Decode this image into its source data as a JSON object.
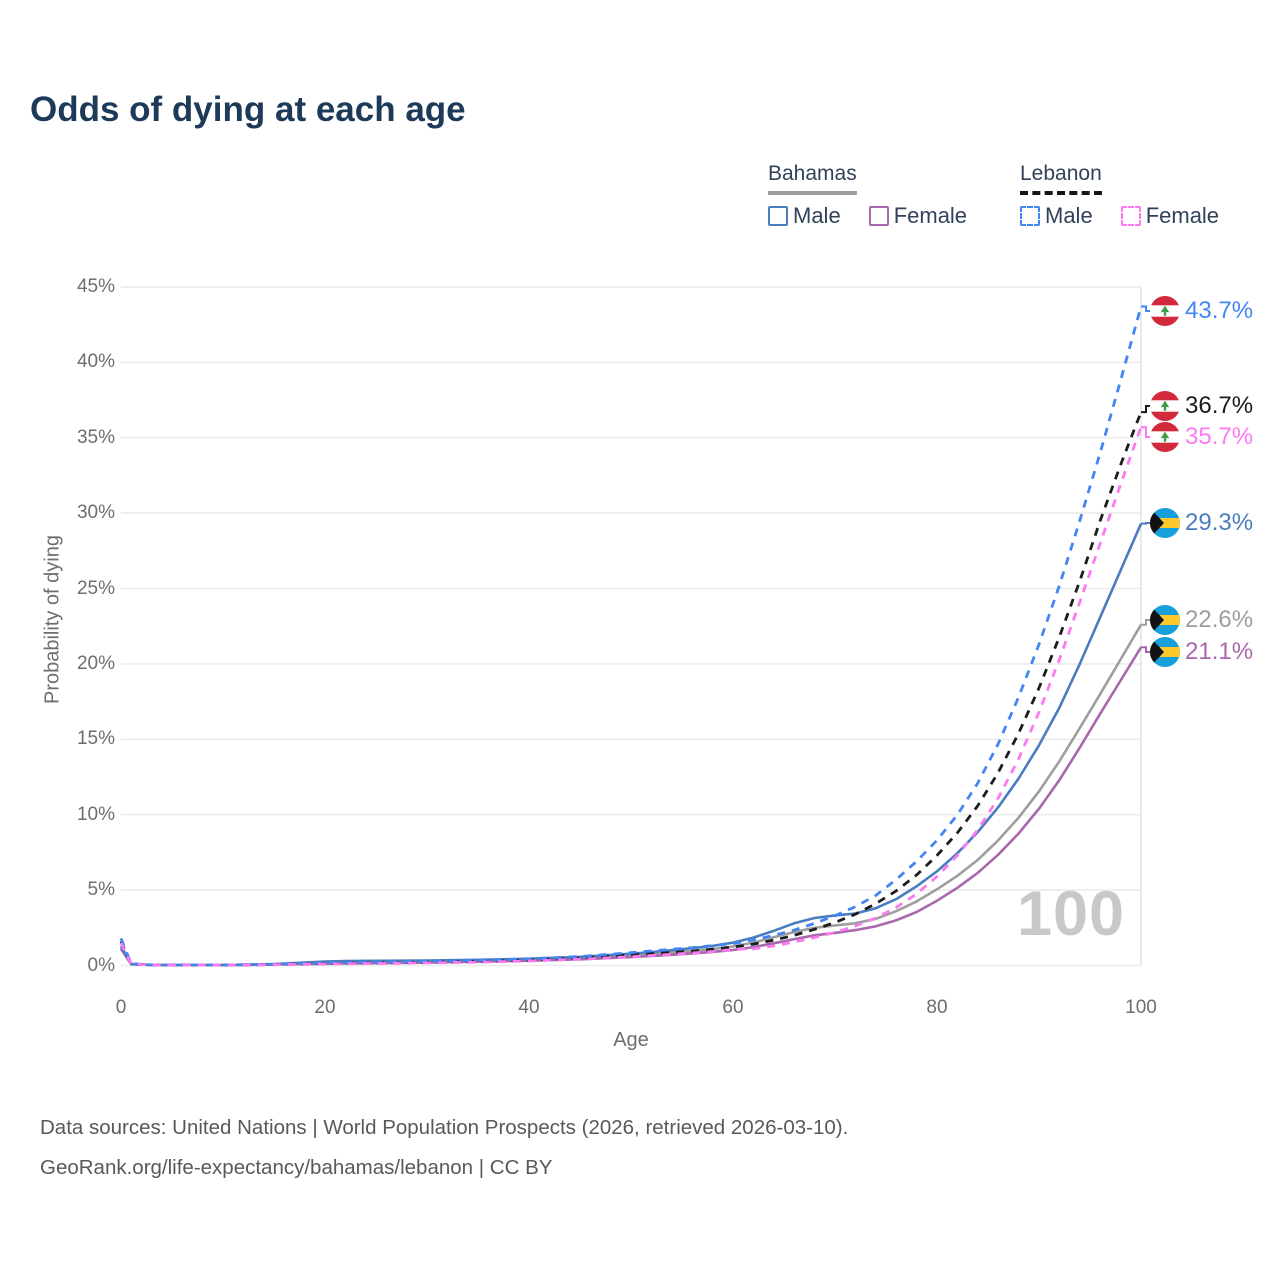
{
  "title": "Odds of dying at each age",
  "legend": {
    "groups": [
      {
        "country": "Bahamas",
        "style": "solid",
        "underline_color": "#9e9e9e",
        "items": [
          {
            "label": "Male",
            "color": "#4a7dc0"
          },
          {
            "label": "Female",
            "color": "#a968ab"
          }
        ]
      },
      {
        "country": "Lebanon",
        "style": "dashed",
        "underline_color": "#161616",
        "items": [
          {
            "label": "Male",
            "color": "#4285f4"
          },
          {
            "label": "Female",
            "color": "#fb7af2"
          }
        ]
      }
    ]
  },
  "axes": {
    "y_title": "Probability of dying",
    "x_title": "Age",
    "y_tick_labels": [
      "0%",
      "5%",
      "10%",
      "15%",
      "20%",
      "25%",
      "30%",
      "35%",
      "40%",
      "45%"
    ],
    "x_tick_labels": [
      "0",
      "20",
      "40",
      "60",
      "80",
      "100"
    ]
  },
  "hover_age": "100",
  "footer": {
    "line1": "Data sources: United Nations | World Population Prospects (2026, retrieved 2026-03-10).",
    "line2": "GeoRank.org/life-expectancy/bahamas/lebanon | CC BY"
  },
  "chart_data": {
    "type": "line",
    "title": "Odds of dying at each age",
    "xlabel": "Age",
    "ylabel": "Probability of dying",
    "xlim": [
      0,
      100
    ],
    "ylim": [
      0,
      45
    ],
    "x_ticks": [
      0,
      20,
      40,
      60,
      80,
      100
    ],
    "y_ticks_pct": [
      0,
      5,
      10,
      15,
      20,
      25,
      30,
      35,
      40,
      45
    ],
    "grid": "horizontal-only",
    "legend_position": "top-right",
    "hover_age": 100,
    "ages": [
      0,
      1,
      3,
      5,
      10,
      15,
      18,
      20,
      22,
      25,
      30,
      35,
      40,
      45,
      50,
      53,
      56,
      58,
      60,
      62,
      64,
      66,
      68,
      70,
      72,
      74,
      76,
      78,
      80,
      82,
      84,
      86,
      88,
      90,
      92,
      94,
      96,
      98,
      100
    ],
    "series": [
      {
        "name": "Lebanon Male",
        "country": "Lebanon",
        "sex": "male",
        "line": "dashed",
        "color": "#4285f4",
        "end_label": "43.7%",
        "end_value": 43.7,
        "values": [
          1.8,
          0.12,
          0.04,
          0.03,
          0.04,
          0.08,
          0.13,
          0.16,
          0.18,
          0.21,
          0.26,
          0.33,
          0.44,
          0.6,
          0.85,
          1.02,
          1.18,
          1.32,
          1.45,
          1.7,
          2.0,
          2.35,
          2.8,
          3.3,
          3.9,
          4.65,
          5.7,
          6.9,
          8.3,
          10.0,
          12.1,
          14.7,
          17.8,
          21.3,
          25.2,
          29.5,
          34.0,
          38.8,
          43.7
        ]
      },
      {
        "name": "Lebanon Both sexes",
        "country": "Lebanon",
        "sex": "both",
        "line": "dashed",
        "color": "#1c1c1c",
        "end_label": "36.7%",
        "end_value": 36.7,
        "values": [
          1.6,
          0.1,
          0.04,
          0.03,
          0.03,
          0.06,
          0.1,
          0.12,
          0.14,
          0.17,
          0.21,
          0.27,
          0.36,
          0.5,
          0.7,
          0.82,
          0.95,
          1.08,
          1.23,
          1.42,
          1.68,
          2.0,
          2.4,
          2.85,
          3.4,
          4.1,
          4.95,
          6.0,
          7.3,
          8.8,
          10.6,
          12.8,
          15.4,
          18.4,
          21.8,
          25.5,
          29.5,
          33.2,
          36.7
        ]
      },
      {
        "name": "Lebanon Female",
        "country": "Lebanon",
        "sex": "female",
        "line": "dashed",
        "color": "#fb7af2",
        "end_label": "35.7%",
        "end_value": 35.7,
        "values": [
          1.5,
          0.09,
          0.03,
          0.02,
          0.03,
          0.05,
          0.08,
          0.1,
          0.11,
          0.13,
          0.17,
          0.22,
          0.3,
          0.42,
          0.58,
          0.7,
          0.83,
          0.93,
          1.06,
          1.1,
          1.3,
          1.55,
          1.85,
          2.2,
          2.62,
          3.15,
          3.85,
          4.75,
          5.9,
          7.3,
          9.0,
          11.1,
          13.7,
          16.8,
          20.3,
          24.1,
          28.0,
          31.9,
          35.7
        ]
      },
      {
        "name": "Bahamas Male",
        "country": "Bahamas",
        "sex": "male",
        "line": "solid",
        "color": "#4a7dc0",
        "end_label": "29.3%",
        "end_value": 29.3,
        "values": [
          1.3,
          0.1,
          0.04,
          0.03,
          0.03,
          0.1,
          0.2,
          0.26,
          0.29,
          0.31,
          0.33,
          0.38,
          0.45,
          0.57,
          0.78,
          0.95,
          1.15,
          1.3,
          1.52,
          1.85,
          2.3,
          2.8,
          3.15,
          3.32,
          3.45,
          3.8,
          4.4,
          5.25,
          6.25,
          7.45,
          8.85,
          10.5,
          12.4,
          14.6,
          17.1,
          20.0,
          23.1,
          26.2,
          29.3
        ]
      },
      {
        "name": "Bahamas Both sexes",
        "country": "Bahamas",
        "sex": "both",
        "line": "solid",
        "color": "#9e9e9e",
        "end_label": "22.6%",
        "end_value": 22.6,
        "values": [
          1.2,
          0.09,
          0.03,
          0.03,
          0.03,
          0.08,
          0.14,
          0.18,
          0.2,
          0.22,
          0.26,
          0.31,
          0.38,
          0.48,
          0.66,
          0.8,
          0.97,
          1.09,
          1.26,
          1.52,
          1.87,
          2.22,
          2.5,
          2.66,
          2.8,
          3.1,
          3.6,
          4.25,
          5.05,
          5.95,
          7.0,
          8.3,
          9.8,
          11.55,
          13.55,
          15.75,
          18.0,
          20.3,
          22.6
        ]
      },
      {
        "name": "Bahamas Female",
        "country": "Bahamas",
        "sex": "female",
        "line": "solid",
        "color": "#a968ab",
        "end_label": "21.1%",
        "end_value": 21.1,
        "values": [
          1.1,
          0.08,
          0.03,
          0.02,
          0.02,
          0.06,
          0.09,
          0.11,
          0.13,
          0.15,
          0.19,
          0.25,
          0.32,
          0.41,
          0.56,
          0.67,
          0.8,
          0.9,
          1.03,
          1.22,
          1.47,
          1.75,
          2.0,
          2.16,
          2.35,
          2.6,
          3.0,
          3.55,
          4.3,
          5.15,
          6.15,
          7.35,
          8.75,
          10.4,
          12.3,
          14.45,
          16.7,
          18.9,
          21.1
        ]
      }
    ]
  }
}
